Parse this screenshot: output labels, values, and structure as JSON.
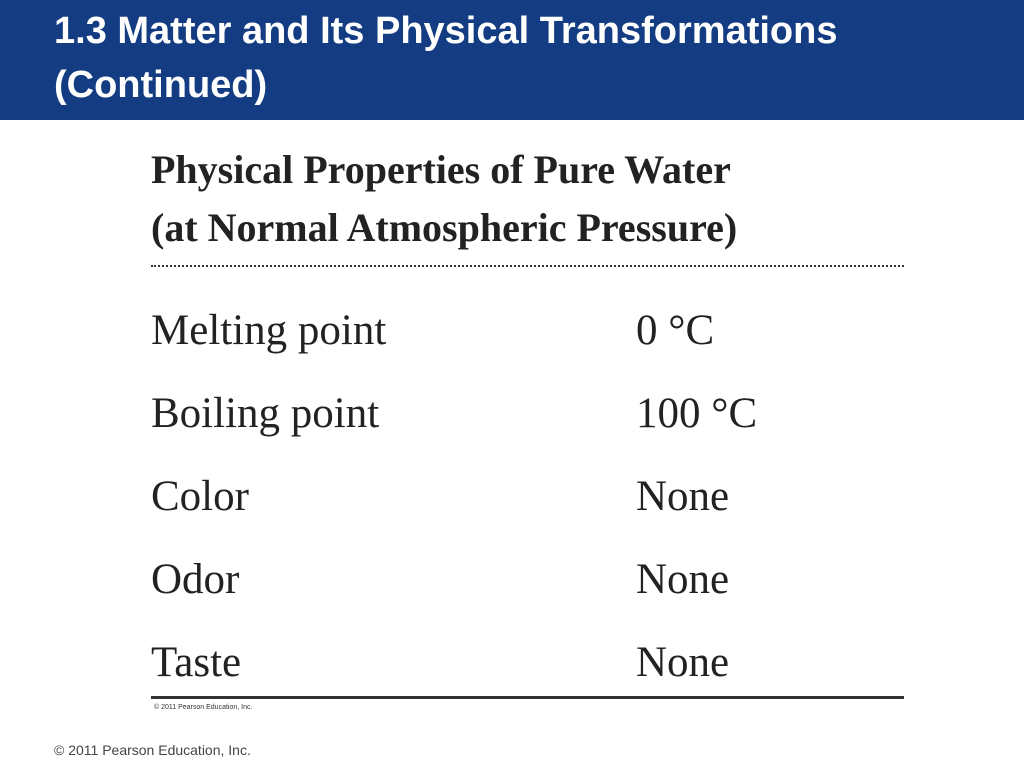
{
  "header": {
    "title_lines": [
      "1.3 Matter and Its Physical Transformations",
      "(Continued)"
    ]
  },
  "table": {
    "title_lines": [
      "Physical Properties of Pure Water",
      "(at Normal Atmospheric Pressure)"
    ],
    "rows": [
      [
        "Melting point",
        "0 °C"
      ],
      [
        "Boiling point",
        "100 °C"
      ],
      [
        "Color",
        "None"
      ],
      [
        "Odor",
        "None"
      ],
      [
        "Taste",
        "None"
      ]
    ],
    "credit": "© 2011 Pearson Education, Inc."
  },
  "footer": {
    "copyright": "© 2011 Pearson Education, Inc."
  }
}
